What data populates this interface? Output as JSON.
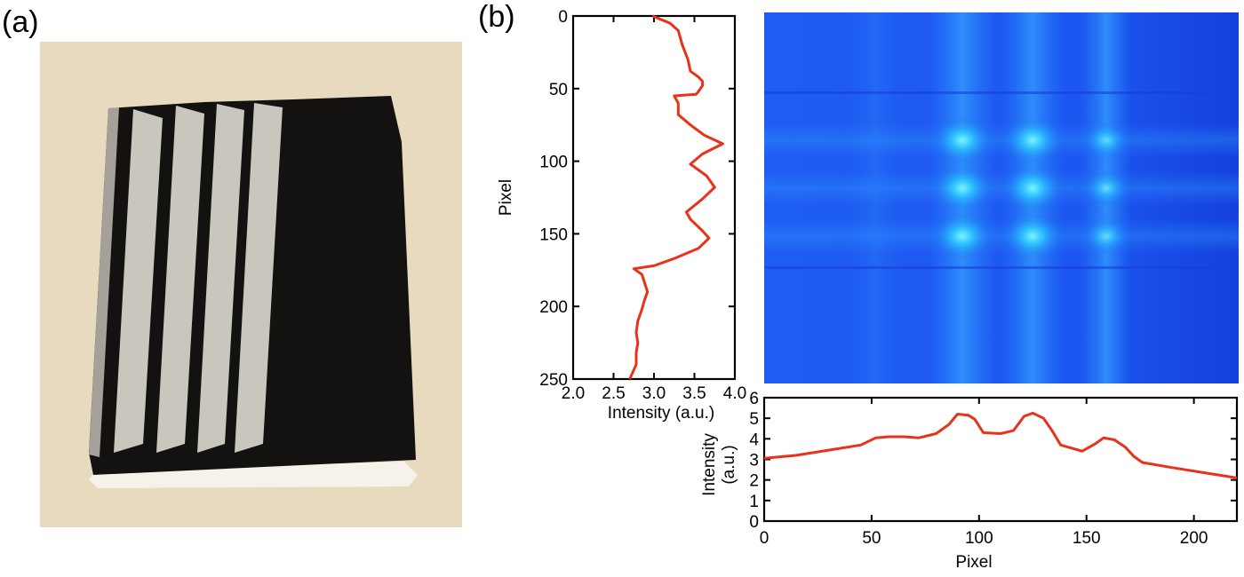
{
  "panel_a_label": "(a)",
  "panel_b_label": "(b)",
  "colors": {
    "curve": "#e8321a",
    "paper": "#eee1c6",
    "ink": "#141210",
    "stripe_light": "#c9c6bd",
    "image_bg": "#1a4fee"
  },
  "photo": {
    "stripes": 4,
    "description_free": true
  },
  "chart_data": [
    {
      "type": "line",
      "orientation": "vertical",
      "xlabel": "Intensity (a.u.)",
      "ylabel": "Pixel",
      "xlim": [
        2.0,
        4.0
      ],
      "ylim": [
        0,
        250
      ],
      "y_inverted": true,
      "xticks": [
        "2.0",
        "2.5",
        "3.0",
        "3.5",
        "4.0"
      ],
      "yticks": [
        "0",
        "50",
        "100",
        "150",
        "200",
        "250"
      ],
      "series": [
        {
          "points": [
            [
              2.98,
              0
            ],
            [
              3.2,
              5
            ],
            [
              3.3,
              10
            ],
            [
              3.35,
              20
            ],
            [
              3.42,
              30
            ],
            [
              3.45,
              38
            ],
            [
              3.55,
              42
            ],
            [
              3.6,
              45
            ],
            [
              3.6,
              48
            ],
            [
              3.55,
              52
            ],
            [
              3.52,
              54
            ],
            [
              3.25,
              55
            ],
            [
              3.3,
              60
            ],
            [
              3.3,
              68
            ],
            [
              3.45,
              75
            ],
            [
              3.62,
              82
            ],
            [
              3.85,
              88
            ],
            [
              3.6,
              95
            ],
            [
              3.45,
              102
            ],
            [
              3.65,
              110
            ],
            [
              3.75,
              118
            ],
            [
              3.6,
              126
            ],
            [
              3.4,
              135
            ],
            [
              3.45,
              140
            ],
            [
              3.6,
              148
            ],
            [
              3.68,
              153
            ],
            [
              3.55,
              160
            ],
            [
              3.25,
              167
            ],
            [
              3.0,
              172
            ],
            [
              2.75,
              174
            ],
            [
              2.85,
              178
            ],
            [
              2.88,
              183
            ],
            [
              2.92,
              190
            ],
            [
              2.88,
              196
            ],
            [
              2.85,
              202
            ],
            [
              2.8,
              210
            ],
            [
              2.78,
              218
            ],
            [
              2.8,
              225
            ],
            [
              2.78,
              232
            ],
            [
              2.78,
              240
            ],
            [
              2.7,
              250
            ]
          ]
        }
      ]
    },
    {
      "type": "line",
      "xlabel": "Pixel",
      "ylabel": "Intensity (a.u.)",
      "xlim": [
        0,
        220
      ],
      "ylim": [
        0,
        6
      ],
      "xticks": [
        "0",
        "50",
        "100",
        "150",
        "200"
      ],
      "yticks": [
        "0",
        "1",
        "2",
        "3",
        "4",
        "5",
        "6"
      ],
      "series": [
        {
          "points": [
            [
              0,
              3.05
            ],
            [
              15,
              3.2
            ],
            [
              30,
              3.45
            ],
            [
              45,
              3.7
            ],
            [
              52,
              4.05
            ],
            [
              58,
              4.1
            ],
            [
              65,
              4.1
            ],
            [
              72,
              4.05
            ],
            [
              80,
              4.25
            ],
            [
              86,
              4.7
            ],
            [
              90,
              5.2
            ],
            [
              95,
              5.15
            ],
            [
              98,
              4.95
            ],
            [
              102,
              4.3
            ],
            [
              110,
              4.25
            ],
            [
              116,
              4.4
            ],
            [
              121,
              5.1
            ],
            [
              125,
              5.25
            ],
            [
              130,
              5.0
            ],
            [
              134,
              4.4
            ],
            [
              138,
              3.7
            ],
            [
              148,
              3.4
            ],
            [
              154,
              3.75
            ],
            [
              158,
              4.05
            ],
            [
              163,
              3.95
            ],
            [
              168,
              3.6
            ],
            [
              172,
              3.15
            ],
            [
              176,
              2.85
            ],
            [
              190,
              2.6
            ],
            [
              205,
              2.35
            ],
            [
              220,
              2.1
            ]
          ]
        }
      ]
    }
  ]
}
